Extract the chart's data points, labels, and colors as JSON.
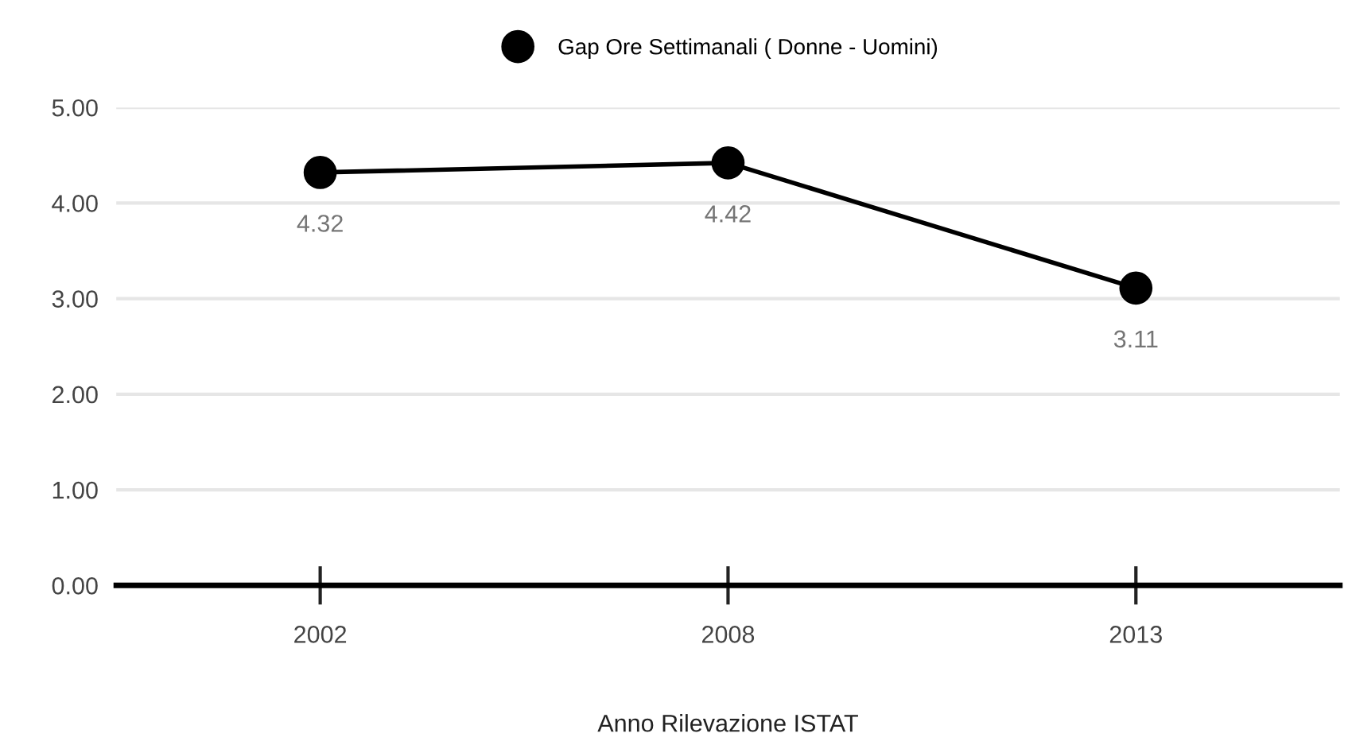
{
  "chart_data": {
    "type": "line",
    "xlabel": "Anno Rilevazione ISTAT",
    "categories": [
      "2002",
      "2008",
      "2013"
    ],
    "series": [
      {
        "name": "Gap Ore Settimanali ( Donne - Uomini)",
        "color": "#000000",
        "values": [
          4.32,
          4.42,
          3.11
        ],
        "value_labels": [
          "4.32",
          "4.42",
          "3.11"
        ]
      }
    ],
    "ylim": [
      0,
      5
    ],
    "yticks": [
      {
        "value": 0,
        "label": "0.00"
      },
      {
        "value": 1,
        "label": "1.00"
      },
      {
        "value": 2,
        "label": "2.00"
      },
      {
        "value": 3,
        "label": "3.00"
      },
      {
        "value": 4,
        "label": "4.00"
      },
      {
        "value": 5,
        "label": "5.00"
      }
    ],
    "grid": "y",
    "legend": "top",
    "marker": "circle",
    "line_style": "solid"
  }
}
